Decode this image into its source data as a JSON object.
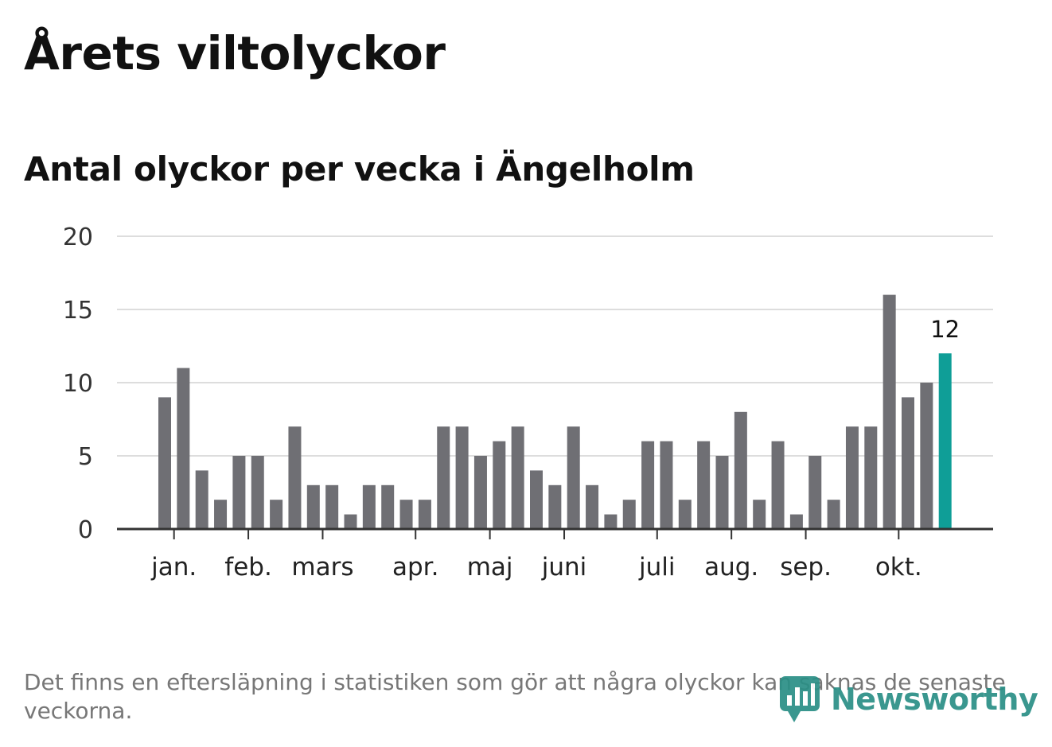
{
  "title": "Årets viltolyckor",
  "subtitle": "Antal olyckor per vecka i Ängelholm",
  "footnote": "Det finns en eftersläpning i statistiken som gör att några olyckor kan saknas de senaste veckorna.",
  "logo": {
    "text": "Newsworthy",
    "icon": "newsworthy-logo-icon"
  },
  "colors": {
    "bar": "#6f6f74",
    "highlight": "#0f9e97",
    "grid": "#dddddd",
    "axis": "#333333",
    "logo": "#2a8f86"
  },
  "chart_data": {
    "type": "bar",
    "title": "Antal olyckor per vecka i Ängelholm",
    "xlabel": "",
    "ylabel": "",
    "ylim": [
      0,
      20
    ],
    "yticks": [
      0,
      5,
      10,
      15,
      20
    ],
    "grid": true,
    "values": [
      9,
      11,
      4,
      2,
      5,
      5,
      2,
      7,
      3,
      3,
      1,
      3,
      3,
      2,
      2,
      7,
      7,
      5,
      6,
      7,
      4,
      3,
      7,
      3,
      1,
      2,
      6,
      6,
      2,
      6,
      5,
      8,
      2,
      6,
      1,
      5,
      2,
      7,
      7,
      16,
      9,
      10,
      12
    ],
    "highlight_index": 42,
    "highlight_label": "12",
    "month_ticks": [
      {
        "label": "jan.",
        "week": 0.5
      },
      {
        "label": "feb.",
        "week": 4.5
      },
      {
        "label": "mars",
        "week": 8.5
      },
      {
        "label": "apr.",
        "week": 13.5
      },
      {
        "label": "maj",
        "week": 17.5
      },
      {
        "label": "juni",
        "week": 21.5
      },
      {
        "label": "juli",
        "week": 26.5
      },
      {
        "label": "aug.",
        "week": 30.5
      },
      {
        "label": "sep.",
        "week": 34.5
      },
      {
        "label": "okt.",
        "week": 39.5
      }
    ]
  }
}
